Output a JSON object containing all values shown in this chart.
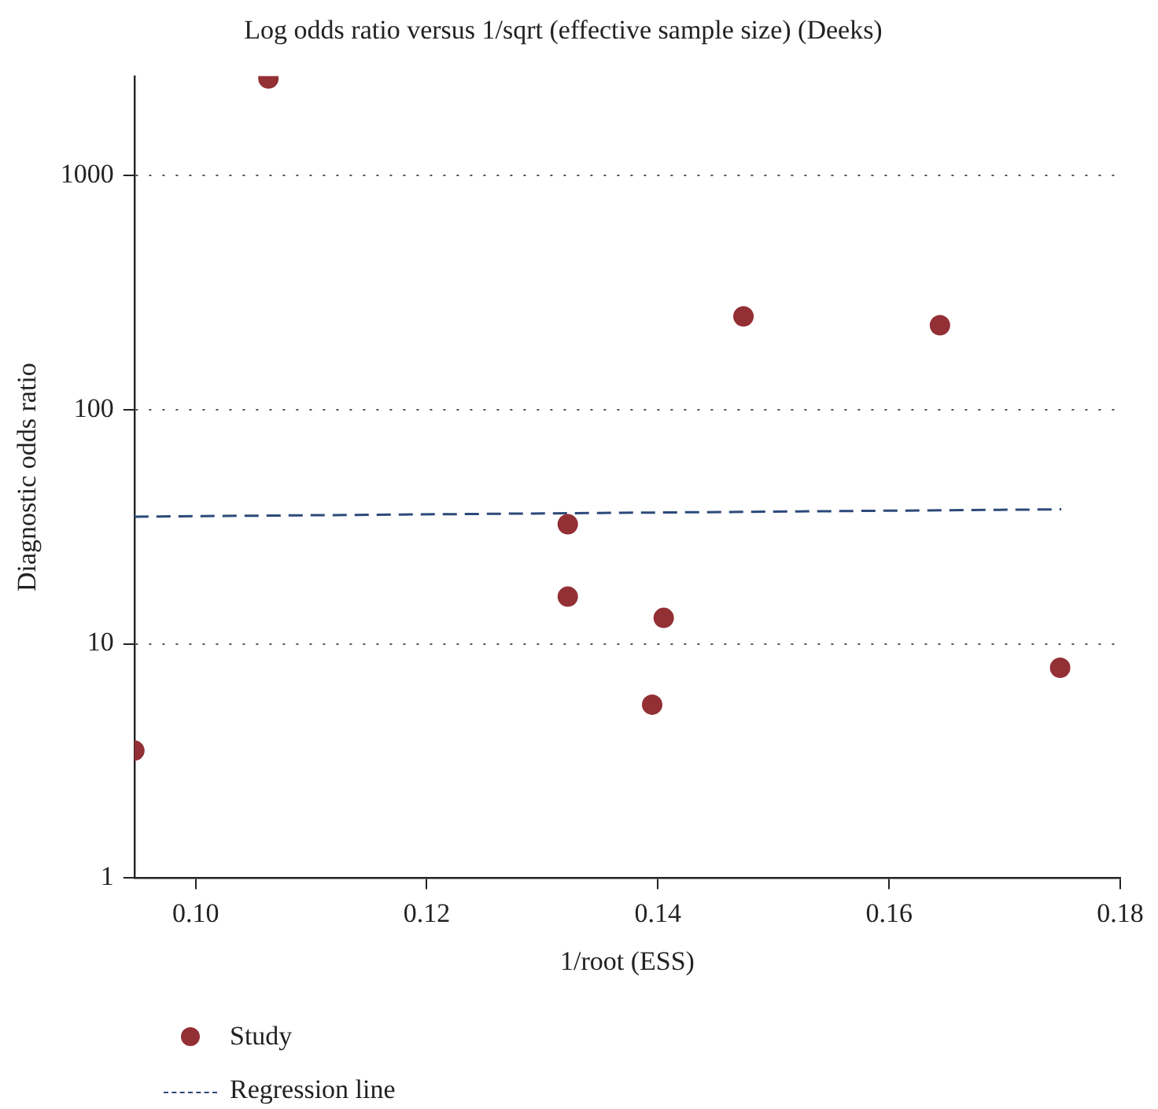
{
  "chart_data": {
    "type": "scatter",
    "title": "Log odds ratio versus 1/sqrt (effective sample size) (Deeks)",
    "xlabel": "1/root (ESS)",
    "ylabel": "Diagnostic odds ratio",
    "x": [
      0.1063,
      0.0947,
      0.1322,
      0.1322,
      0.1405,
      0.1395,
      0.1474,
      0.1644,
      0.1748
    ],
    "series": [
      {
        "name": "Study",
        "color": "#933035",
        "marker": "circle",
        "values": [
          2590,
          3.5,
          32.4,
          15.9,
          12.9,
          5.5,
          250,
          229,
          7.9
        ]
      },
      {
        "name": "Regression line",
        "type": "line",
        "color": "#2c4a7a",
        "line_style": "dashed",
        "marker": "none",
        "x": [
          0.0947,
          0.1749
        ],
        "values": [
          34.9,
          37.5
        ]
      }
    ],
    "log": "y",
    "xlim": [
      0.0947,
      0.18
    ],
    "ylim": [
      1,
      2650
    ],
    "xticks": [
      {
        "value": 0.1,
        "label": "0.10"
      },
      {
        "value": 0.12,
        "label": "0.12"
      },
      {
        "value": 0.14,
        "label": "0.14"
      },
      {
        "value": 0.16,
        "label": "0.16"
      },
      {
        "value": 0.18,
        "label": "0.18"
      }
    ],
    "yticks": [
      1,
      10,
      100,
      1000
    ],
    "grid": "y",
    "legend": "bottom left"
  }
}
